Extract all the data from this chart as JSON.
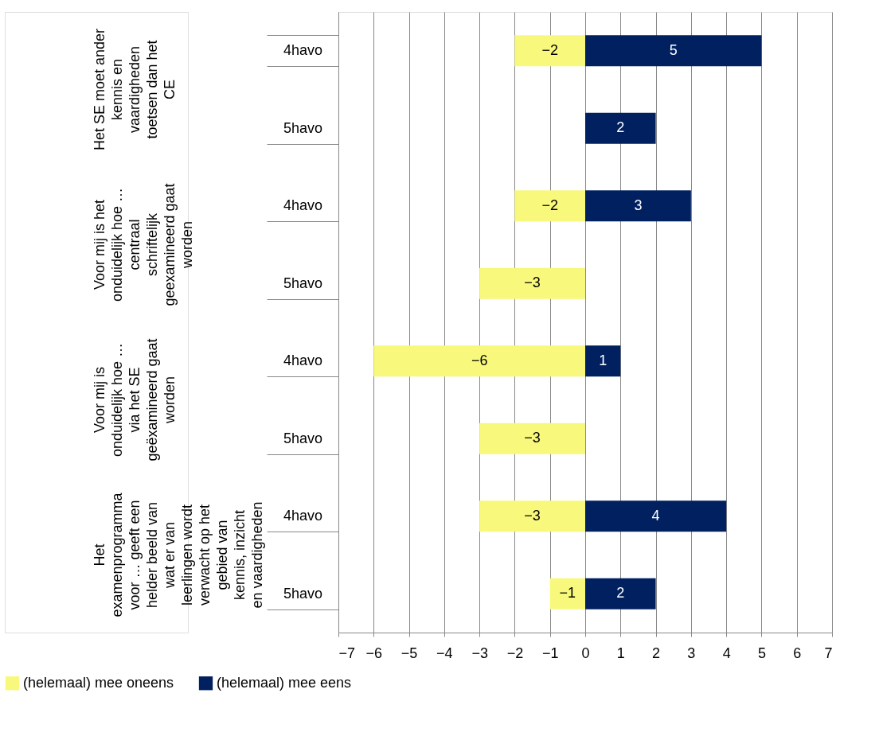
{
  "chart_data": {
    "type": "bar",
    "orientation": "horizontal",
    "stacked": true,
    "categories": [
      "4havo",
      "5havo",
      "4havo",
      "5havo",
      "4havo",
      "5havo",
      "4havo",
      "5havo"
    ],
    "series": [
      {
        "name": "(helemaal) mee oneens",
        "color": "#f8f87c",
        "values": [
          -2,
          null,
          -2,
          -3,
          -6,
          -3,
          -3,
          -1
        ]
      },
      {
        "name": "(helemaal) mee eens",
        "color": "#002060",
        "values": [
          5,
          2,
          3,
          null,
          1,
          null,
          4,
          2
        ]
      }
    ],
    "annotations": [
      "Het SE moet ander kennis en vaardigheden toetsen dan het CE",
      "Voor mij is het onduidelijk hoe … centraal schriftelijk geexamineerd gaat worden",
      "Voor mij is onduidelijk hoe … via het SE geëxamineerd gaat worden",
      "Het examenprogramma voor … geeft een helder beeld van wat er van leerlingen wordt verwacht op het gebied van kennis, inzicht en vaardigheden"
    ],
    "xlim": [
      -7,
      7
    ],
    "xticks": [
      -7,
      -6,
      -5,
      -4,
      -3,
      -2,
      -1,
      0,
      1,
      2,
      3,
      4,
      5,
      6,
      7
    ],
    "grid": "x",
    "legend": "bottom",
    "data_labels": true
  }
}
